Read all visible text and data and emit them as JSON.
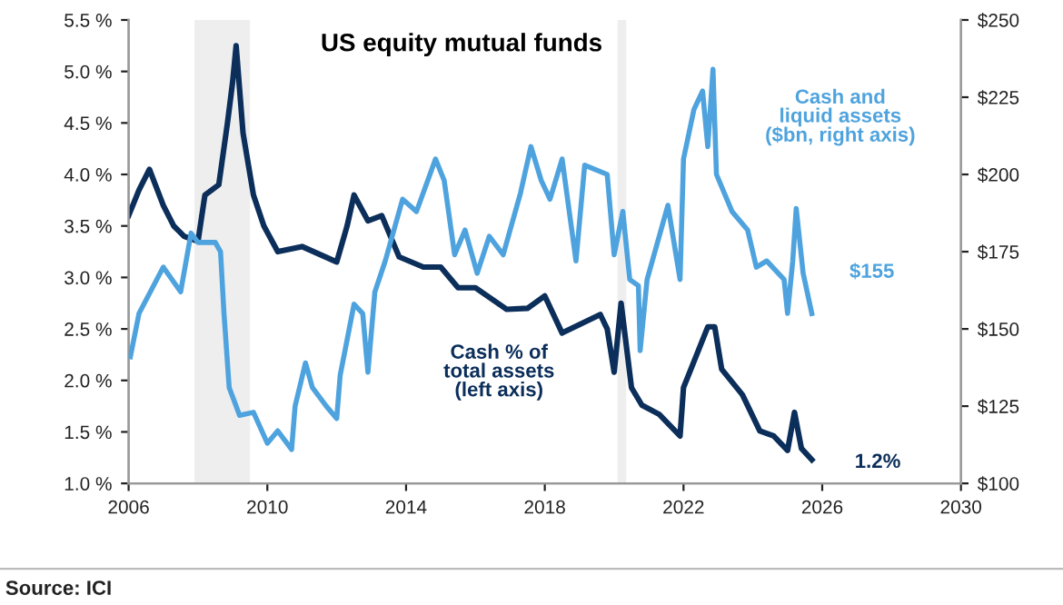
{
  "chart_data": {
    "type": "line",
    "title": "US equity mutual funds",
    "xlim": [
      2006,
      2030
    ],
    "xticks": [
      2006,
      2010,
      2014,
      2018,
      2022,
      2026,
      2030
    ],
    "ylim": [
      1.0,
      5.5
    ],
    "yticks": [
      {
        "value": 1.0,
        "label": "1.0 %"
      },
      {
        "value": 1.5,
        "label": "1.5 %"
      },
      {
        "value": 2.0,
        "label": "2.0 %"
      },
      {
        "value": 2.5,
        "label": "2.5 %"
      },
      {
        "value": 3.0,
        "label": "3.0 %"
      },
      {
        "value": 3.5,
        "label": "3.5 %"
      },
      {
        "value": 4.0,
        "label": "4.0 %"
      },
      {
        "value": 4.5,
        "label": "4.5 %"
      },
      {
        "value": 5.0,
        "label": "5.0 %"
      },
      {
        "value": 5.5,
        "label": "5.5 %"
      }
    ],
    "y2lim": [
      100,
      250
    ],
    "y2ticks": [
      {
        "value": 100,
        "label": "$100"
      },
      {
        "value": 125,
        "label": "$125"
      },
      {
        "value": 150,
        "label": "$150"
      },
      {
        "value": 175,
        "label": "$175"
      },
      {
        "value": 200,
        "label": "$200"
      },
      {
        "value": 225,
        "label": "$225"
      },
      {
        "value": 250,
        "label": "$250"
      }
    ],
    "grid": false,
    "line_style": "solid",
    "marker": "none",
    "bands": [
      {
        "axis": "x",
        "from": 2007.9,
        "to": 2009.5,
        "color": "#eeeeee"
      },
      {
        "axis": "x",
        "from": 2020.1,
        "to": 2020.35,
        "color": "#eeeeee"
      }
    ],
    "series": [
      {
        "color": "#0b2e5a",
        "x": [
          2006.0,
          2006.3,
          2006.6,
          2007.0,
          2007.3,
          2007.6,
          2008.0,
          2008.2,
          2008.6,
          2008.85,
          2009.0,
          2009.1,
          2009.3,
          2009.6,
          2009.9,
          2010.3,
          2011.0,
          2012.0,
          2012.3,
          2012.5,
          2012.9,
          2013.3,
          2013.8,
          2014.5,
          2015.0,
          2015.5,
          2016.0,
          2016.9,
          2017.5,
          2018.0,
          2018.5,
          2019.6,
          2019.8,
          2020.0,
          2020.2,
          2020.5,
          2020.8,
          2021.3,
          2021.9,
          2022.0,
          2022.7,
          2022.9,
          2023.1,
          2023.7,
          2024.2,
          2024.6,
          2025.0,
          2025.2,
          2025.4,
          2025.7
        ],
        "values": [
          3.6,
          3.85,
          4.05,
          3.7,
          3.5,
          3.4,
          3.35,
          3.8,
          3.9,
          4.5,
          4.9,
          5.25,
          4.4,
          3.8,
          3.5,
          3.25,
          3.3,
          3.15,
          3.5,
          3.8,
          3.55,
          3.6,
          3.2,
          3.1,
          3.1,
          2.9,
          2.9,
          2.69,
          2.7,
          2.82,
          2.46,
          2.64,
          2.5,
          2.08,
          2.75,
          1.93,
          1.76,
          1.67,
          1.46,
          1.93,
          2.52,
          2.52,
          2.11,
          1.86,
          1.51,
          1.46,
          1.32,
          1.69,
          1.34,
          1.23
        ]
      },
      {
        "color": "#4ea3de",
        "axis": "y2",
        "x": [
          2006.05,
          2006.3,
          2007.0,
          2007.5,
          2007.8,
          2008.0,
          2008.5,
          2008.65,
          2008.75,
          2008.9,
          2009.2,
          2009.6,
          2010.0,
          2010.3,
          2010.7,
          2010.8,
          2011.1,
          2011.3,
          2011.7,
          2012.0,
          2012.1,
          2012.5,
          2012.75,
          2012.9,
          2013.1,
          2013.4,
          2013.9,
          2014.3,
          2014.85,
          2015.1,
          2015.4,
          2015.7,
          2016.05,
          2016.4,
          2016.8,
          2017.3,
          2017.6,
          2017.9,
          2018.15,
          2018.5,
          2018.9,
          2019.15,
          2019.8,
          2020.0,
          2020.25,
          2020.45,
          2020.7,
          2020.75,
          2020.95,
          2021.55,
          2021.9,
          2022.0,
          2022.3,
          2022.55,
          2022.7,
          2022.85,
          2022.95,
          2023.4,
          2023.85,
          2024.1,
          2024.4,
          2024.9,
          2025.0,
          2025.15,
          2025.25,
          2025.45,
          2025.7
        ],
        "values": [
          141,
          155,
          170,
          162,
          181,
          178,
          178,
          175,
          155,
          131,
          122,
          123,
          113,
          117,
          111,
          125,
          139,
          131,
          125,
          121,
          135,
          158,
          155,
          136,
          162,
          172,
          192,
          188,
          205,
          198,
          174,
          182,
          168,
          180,
          174,
          194,
          209,
          198,
          192,
          205,
          172,
          203,
          200,
          174,
          188,
          166,
          164,
          143,
          166,
          190,
          166,
          205,
          221,
          227,
          209,
          234,
          200,
          188,
          182,
          170,
          172,
          166,
          155,
          172,
          189,
          168,
          155
        ]
      }
    ],
    "annotations": [
      "Cash and\nliquid assets\n($bn, right axis)",
      "$155",
      "Cash % of\ntotal assets\n(left axis)",
      "1.2%",
      "Source: ICI"
    ]
  }
}
